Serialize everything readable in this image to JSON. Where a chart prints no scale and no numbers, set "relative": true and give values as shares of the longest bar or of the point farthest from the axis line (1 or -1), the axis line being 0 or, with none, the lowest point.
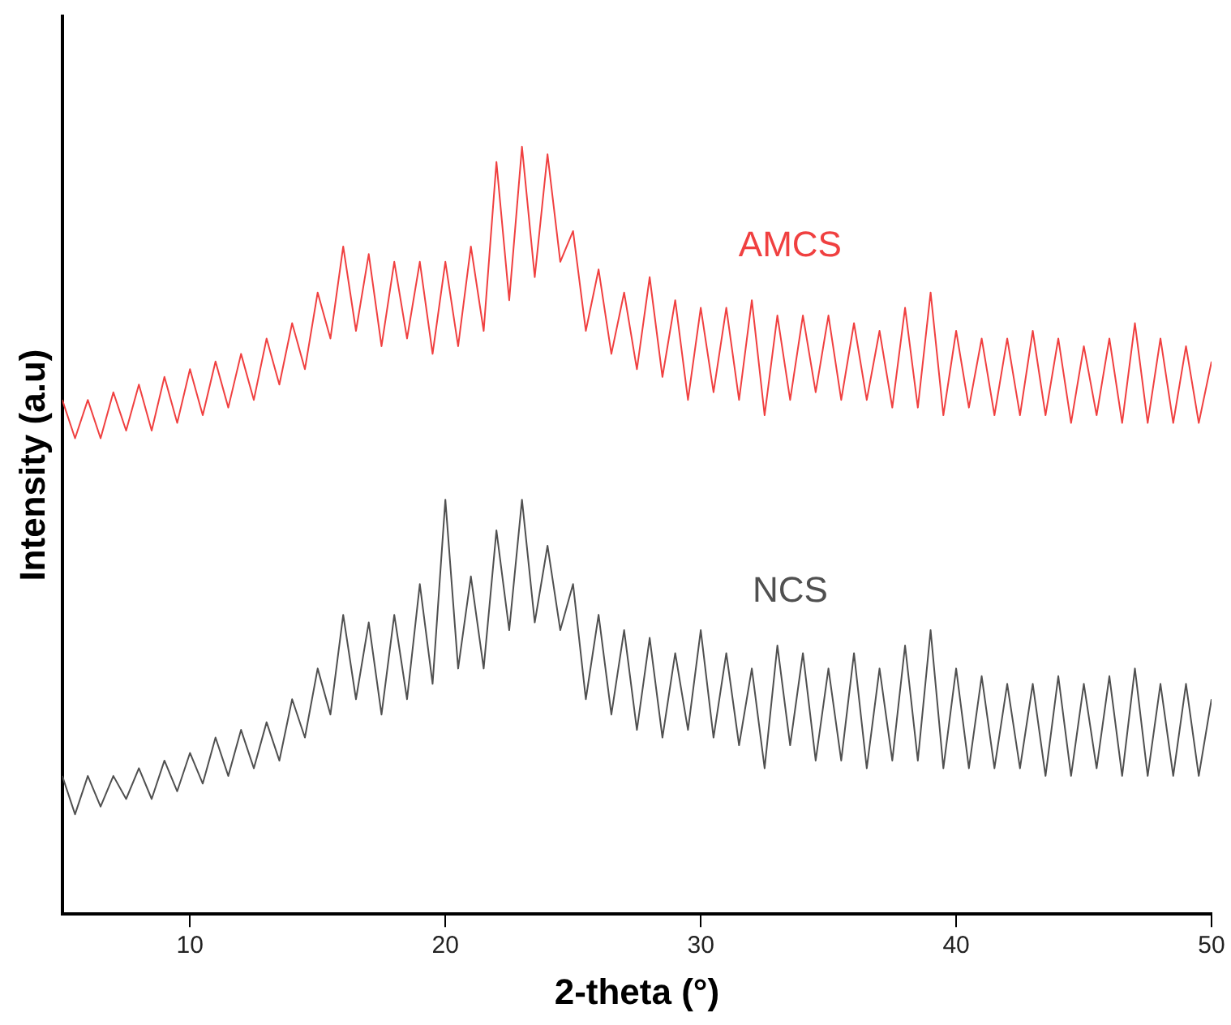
{
  "chart_data": {
    "type": "line",
    "relative": true,
    "xlabel": "2-theta (°)",
    "ylabel": "Intensity (a.u)",
    "xlim": [
      5,
      50
    ],
    "xticks": [
      10,
      20,
      30,
      40,
      50
    ],
    "tick_labels": "x",
    "grid": false,
    "legend": false,
    "marker": "none",
    "line_style": "solid",
    "x": [
      5,
      5.5,
      6,
      6.5,
      7,
      7.5,
      8,
      8.5,
      9,
      9.5,
      10,
      10.5,
      11,
      11.5,
      12,
      12.5,
      13,
      13.5,
      14,
      14.5,
      15,
      15.5,
      16,
      16.5,
      17,
      17.5,
      18,
      18.5,
      19,
      19.5,
      20,
      20.5,
      21,
      21.5,
      22,
      22.5,
      23,
      23.5,
      24,
      24.5,
      25,
      25.5,
      26,
      26.5,
      27,
      27.5,
      28,
      28.5,
      29,
      29.5,
      30,
      30.5,
      31,
      31.5,
      32,
      32.5,
      33,
      33.5,
      34,
      34.5,
      35,
      35.5,
      36,
      36.5,
      37,
      37.5,
      38,
      38.5,
      39,
      39.5,
      40,
      40.5,
      41,
      41.5,
      42,
      42.5,
      43,
      43.5,
      44,
      44.5,
      45,
      45.5,
      46,
      46.5,
      47,
      47.5,
      48,
      48.5,
      49,
      49.5,
      50
    ],
    "series": [
      {
        "name": "AMCS",
        "color": "#f04040",
        "values": [
          0.67,
          0.62,
          0.67,
          0.62,
          0.68,
          0.63,
          0.69,
          0.63,
          0.7,
          0.64,
          0.71,
          0.65,
          0.72,
          0.66,
          0.73,
          0.67,
          0.75,
          0.69,
          0.77,
          0.71,
          0.81,
          0.75,
          0.87,
          0.76,
          0.86,
          0.74,
          0.85,
          0.75,
          0.85,
          0.73,
          0.85,
          0.74,
          0.87,
          0.76,
          0.98,
          0.8,
          1.0,
          0.83,
          0.99,
          0.85,
          0.89,
          0.76,
          0.84,
          0.73,
          0.81,
          0.71,
          0.83,
          0.7,
          0.8,
          0.67,
          0.79,
          0.68,
          0.79,
          0.67,
          0.8,
          0.65,
          0.78,
          0.67,
          0.78,
          0.68,
          0.78,
          0.67,
          0.77,
          0.67,
          0.76,
          0.66,
          0.79,
          0.66,
          0.81,
          0.65,
          0.76,
          0.66,
          0.75,
          0.65,
          0.75,
          0.65,
          0.76,
          0.65,
          0.75,
          0.64,
          0.74,
          0.65,
          0.75,
          0.64,
          0.77,
          0.64,
          0.75,
          0.64,
          0.74,
          0.64,
          0.72
        ]
      },
      {
        "name": "NCS",
        "color": "#505050",
        "values": [
          0.18,
          0.13,
          0.18,
          0.14,
          0.18,
          0.15,
          0.19,
          0.15,
          0.2,
          0.16,
          0.21,
          0.17,
          0.23,
          0.18,
          0.24,
          0.19,
          0.25,
          0.2,
          0.28,
          0.23,
          0.32,
          0.26,
          0.39,
          0.28,
          0.38,
          0.26,
          0.39,
          0.28,
          0.43,
          0.3,
          0.54,
          0.32,
          0.44,
          0.32,
          0.5,
          0.37,
          0.54,
          0.38,
          0.48,
          0.37,
          0.43,
          0.28,
          0.39,
          0.26,
          0.37,
          0.24,
          0.36,
          0.23,
          0.34,
          0.24,
          0.37,
          0.23,
          0.34,
          0.22,
          0.32,
          0.19,
          0.35,
          0.22,
          0.34,
          0.2,
          0.32,
          0.2,
          0.34,
          0.19,
          0.32,
          0.2,
          0.35,
          0.2,
          0.37,
          0.19,
          0.32,
          0.19,
          0.31,
          0.19,
          0.3,
          0.19,
          0.3,
          0.18,
          0.31,
          0.18,
          0.3,
          0.19,
          0.31,
          0.18,
          0.32,
          0.18,
          0.3,
          0.18,
          0.3,
          0.18,
          0.28
        ]
      }
    ]
  }
}
